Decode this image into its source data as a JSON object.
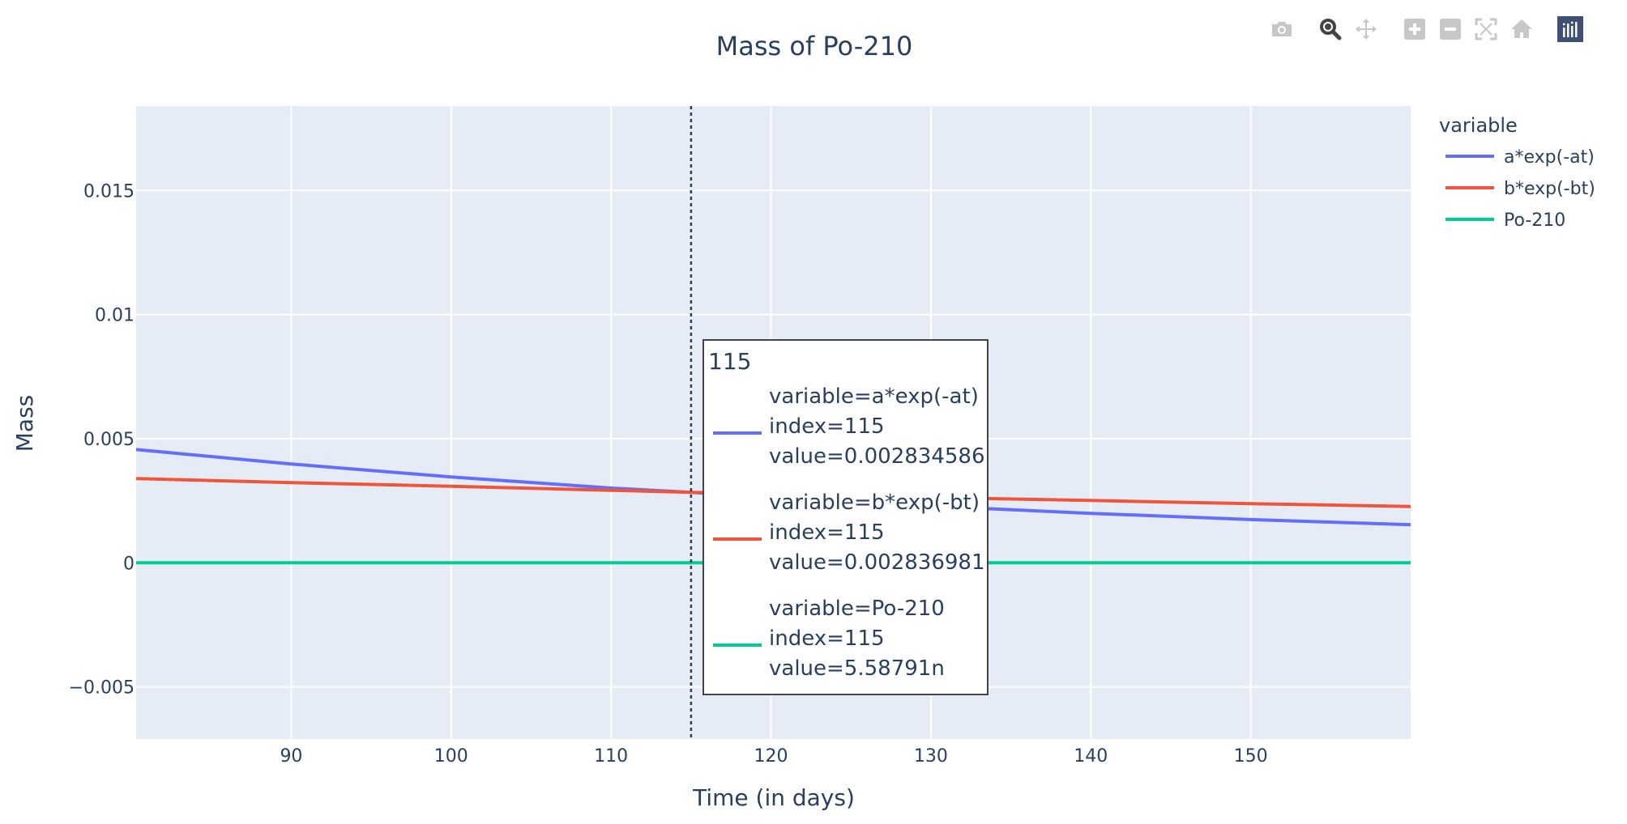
{
  "modebar": {
    "buttons": [
      {
        "name": "camera-icon",
        "title": "Download plot as a png",
        "active": false
      },
      {
        "name": "zoom-icon",
        "title": "Zoom",
        "active": true
      },
      {
        "name": "pan-icon",
        "title": "Pan",
        "active": false
      },
      {
        "name": "zoom-in-icon",
        "title": "Zoom in",
        "active": false
      },
      {
        "name": "zoom-out-icon",
        "title": "Zoom out",
        "active": false
      },
      {
        "name": "autoscale-icon",
        "title": "Autoscale",
        "active": false
      },
      {
        "name": "reset-axes-icon",
        "title": "Reset axes",
        "active": false
      },
      {
        "name": "plotly-logo-icon",
        "title": "Produced with Plotly",
        "active": false
      }
    ]
  },
  "colors": {
    "plot_bg": "#e5ecf6",
    "grid": "#ffffff",
    "text": "#2a3f5f",
    "modebar_icon": "#c7c7c7",
    "modebar_active": "#444444",
    "logo_bg": "#3f4f75"
  },
  "chart_data": {
    "type": "line",
    "title": "Mass of Po-210",
    "xlabel": "Time (in days)",
    "ylabel": "Mass",
    "xlim": [
      80.3,
      160
    ],
    "ylim": [
      -0.0071,
      0.0184
    ],
    "xticks": [
      90,
      100,
      110,
      120,
      130,
      140,
      150
    ],
    "xtick_labels": [
      "90",
      "100",
      "110",
      "120",
      "130",
      "140",
      "150"
    ],
    "yticks": [
      -0.005,
      0,
      0.005,
      0.01,
      0.015
    ],
    "ytick_labels": [
      "−0.005",
      "0",
      "0.005",
      "0.01",
      "0.015"
    ],
    "grid": true,
    "legend": {
      "title": "variable",
      "placement": "top-right"
    },
    "series": [
      {
        "name": "a*exp(-at)",
        "color": "#636efa",
        "x": [
          80.3,
          90,
          100,
          110,
          115,
          120,
          130,
          140,
          150,
          160
        ],
        "y": [
          0.00456,
          0.00398,
          0.00346,
          0.00301,
          0.002834586,
          0.00262,
          0.00228,
          0.00199,
          0.00174,
          0.00153
        ]
      },
      {
        "name": "b*exp(-bt)",
        "color": "#ef553b",
        "x": [
          80.3,
          90,
          100,
          110,
          115,
          120,
          130,
          140,
          150,
          160
        ],
        "y": [
          0.00339,
          0.00323,
          0.00308,
          0.00292,
          0.002836981,
          0.00277,
          0.00263,
          0.00251,
          0.00238,
          0.00227
        ]
      },
      {
        "name": "Po-210",
        "color": "#00cc96",
        "x": [
          80.3,
          90,
          100,
          110,
          115,
          120,
          130,
          140,
          150,
          160
        ],
        "y": [
          0,
          0,
          0,
          0,
          0,
          0,
          0,
          0,
          0,
          0
        ]
      }
    ],
    "hover": {
      "x": 115,
      "header": "115",
      "entries": [
        {
          "series": "a*exp(-at)",
          "color": "#636efa",
          "lines": [
            "variable=a*exp(-at)",
            "index=115",
            "value=0.002834586"
          ]
        },
        {
          "series": "b*exp(-bt)",
          "color": "#ef553b",
          "lines": [
            "variable=b*exp(-bt)",
            "index=115",
            "value=0.002836981"
          ]
        },
        {
          "series": "Po-210",
          "color": "#00cc96",
          "lines": [
            "variable=Po-210",
            "index=115",
            "value=5.58791n"
          ]
        }
      ]
    }
  }
}
